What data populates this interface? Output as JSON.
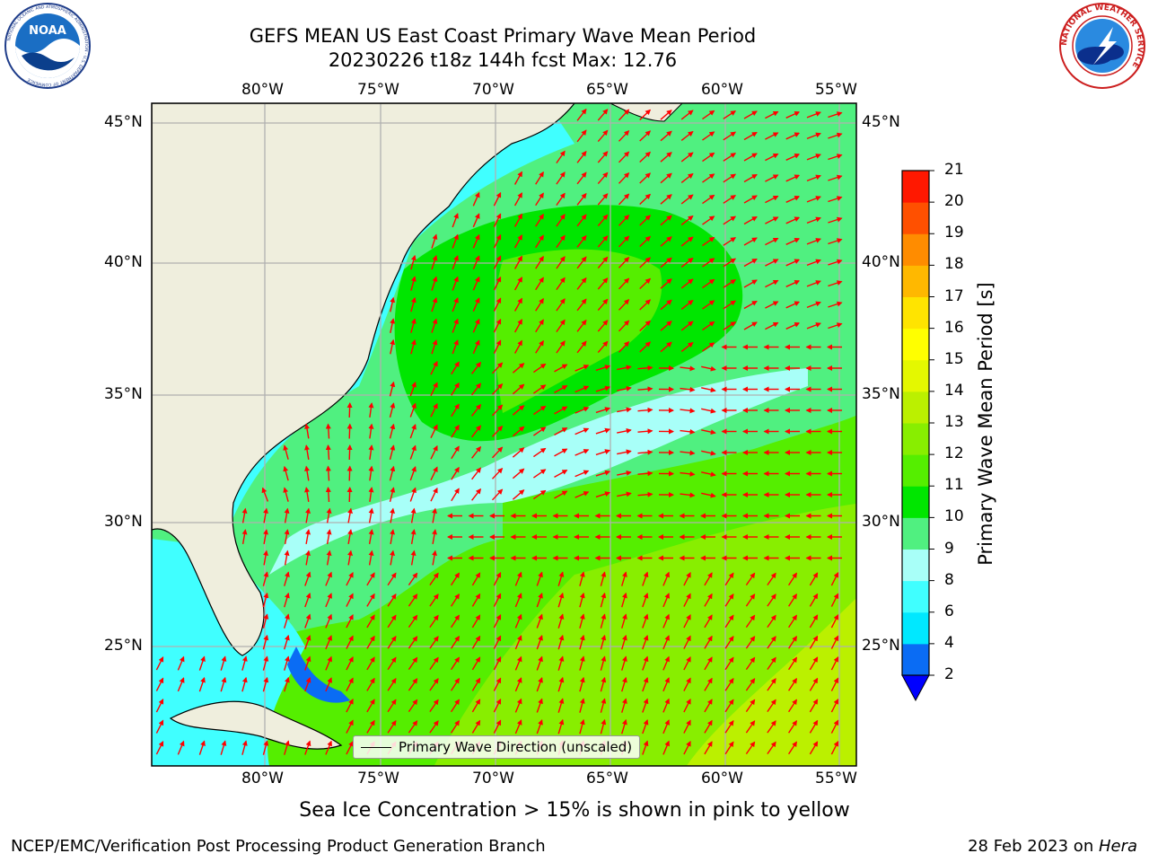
{
  "title": {
    "line1": "GEFS MEAN US East Coast Primary Wave Mean Period",
    "line2": "20230226 t18z 144h fcst   Max: 12.76"
  },
  "logos": {
    "noaa": {
      "center_text": "NOAA",
      "ring_text": "NATIONAL OCEANIC AND ATMOSPHERIC ADMINISTRATION · U.S. DEPARTMENT OF COMMERCE"
    },
    "nws": {
      "ring_text": "NATIONAL WEATHER SERVICE"
    }
  },
  "map": {
    "lon_labels": [
      "80°W",
      "75°W",
      "70°W",
      "65°W",
      "60°W",
      "55°W"
    ],
    "lat_labels": [
      "45°N",
      "40°N",
      "35°N",
      "30°N",
      "25°N"
    ],
    "lon_range": [
      -85,
      -54
    ],
    "lat_range": [
      20.5,
      46
    ],
    "gridlines": true,
    "land_color": "#efeedd",
    "arrow_color": "#ff0000"
  },
  "colorbar": {
    "label": "Primary Wave Mean Period [s]",
    "ticks": [
      "2",
      "4",
      "6",
      "8",
      "9",
      "10",
      "11",
      "12",
      "13",
      "14",
      "15",
      "16",
      "17",
      "18",
      "19",
      "20",
      "21"
    ],
    "colors": [
      "#0a6cf4",
      "#00e8ff",
      "#40ffff",
      "#a8fff8",
      "#50f080",
      "#00e600",
      "#55ee00",
      "#88ee00",
      "#bbf000",
      "#e4f800",
      "#ffff00",
      "#ffe400",
      "#ffb800",
      "#ff8c00",
      "#ff5000",
      "#ff1800"
    ],
    "extend_color": "#0000ff"
  },
  "legend": {
    "label": "Primary Wave Direction (unscaled)"
  },
  "chart_data": {
    "type": "heatmap",
    "title": "GEFS MEAN US East Coast Primary Wave Mean Period",
    "subtitle": "20230226 t18z 144h fcst   Max: 12.76",
    "variable": "Primary Wave Mean Period [s]",
    "max": 12.76,
    "levels": [
      2,
      4,
      6,
      8,
      9,
      10,
      11,
      12,
      13,
      14,
      15,
      16,
      17,
      18,
      19,
      20,
      21
    ],
    "regions": [
      {
        "period_band": "9-10",
        "description": "open Atlantic background"
      },
      {
        "period_band": "10-11",
        "description": "large offshore patch NE of Cape Hatteras"
      },
      {
        "period_band": "11-12",
        "description": "core of offshore patch"
      },
      {
        "period_band": "8-9",
        "description": "band from Florida coast toward 57°W"
      },
      {
        "period_band": "6-8",
        "description": "nearshore shelf waters"
      },
      {
        "period_band": "11-13",
        "description": "southeast corner near 55-60°W, 21-26°N"
      }
    ]
  },
  "footer": {
    "note": "Sea Ice Concentration > 15% is shown in pink to yellow",
    "left": "NCEP/EMC/Verification Post Processing Product Generation Branch",
    "right_prefix": "28 Feb 2023 on ",
    "right_machine": "Hera"
  }
}
